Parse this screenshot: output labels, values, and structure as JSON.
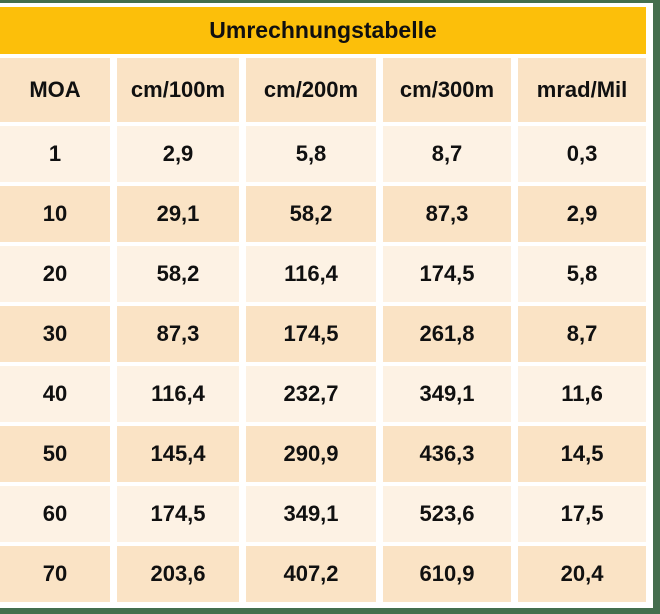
{
  "chart_data": {
    "type": "table",
    "title": "Umrechnungstabelle",
    "columns": [
      "MOA",
      "cm/100m",
      "cm/200m",
      "cm/300m",
      "mrad/Mil"
    ],
    "rows": [
      [
        "1",
        "2,9",
        "5,8",
        "8,7",
        "0,3"
      ],
      [
        "10",
        "29,1",
        "58,2",
        "87,3",
        "2,9"
      ],
      [
        "20",
        "58,2",
        "116,4",
        "174,5",
        "5,8"
      ],
      [
        "30",
        "87,3",
        "174,5",
        "261,8",
        "8,7"
      ],
      [
        "40",
        "116,4",
        "232,7",
        "349,1",
        "11,6"
      ],
      [
        "50",
        "145,4",
        "290,9",
        "436,3",
        "14,5"
      ],
      [
        "60",
        "174,5",
        "349,1",
        "523,6",
        "17,5"
      ],
      [
        "70",
        "203,6",
        "407,2",
        "610,9",
        "20,4"
      ]
    ],
    "layout": {
      "legend": "none",
      "grid": "white-gutters-between-cells",
      "row_striping": "cream-peach-alternating"
    }
  },
  "colors": {
    "frame-green": "#446E4E",
    "title-orange": "#FCBF0A",
    "header-peach": "#FAE3C5",
    "row-cream": "#FDF2E4",
    "row-peach": "#FAE3C5",
    "text": "#101010",
    "gap-white": "#FFFFFF"
  }
}
